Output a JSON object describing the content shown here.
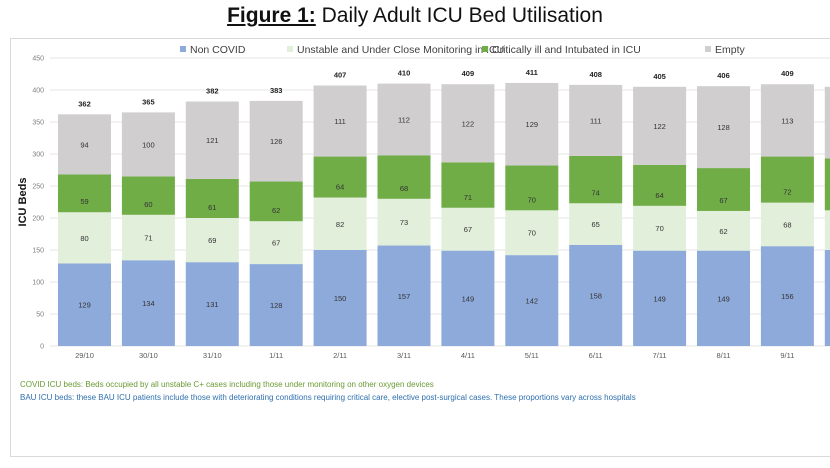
{
  "figure": {
    "title_lead": "Figure 1:",
    "title_rest": " Daily Adult ICU Bed Utilisation"
  },
  "notes": {
    "covid": "COVID ICU beds: Beds occupied by all unstable C+ cases including those under monitoring on other oxygen devices",
    "bau": "BAU ICU beds: these BAU ICU patients include those with deteriorating conditions requiring critical care, elective post-surgical cases. These proportions vary across hospitals"
  },
  "chart_data": {
    "type": "bar",
    "stacked": true,
    "title": "Daily Adult ICU Bed Utilisation",
    "xlabel": "",
    "ylabel": "ICU Beds",
    "ylim": [
      0,
      450
    ],
    "yticks": [
      0,
      50,
      100,
      150,
      200,
      250,
      300,
      350,
      400,
      450
    ],
    "grid": true,
    "legend_position": "top",
    "categories": [
      "29/10",
      "30/10",
      "31/10",
      "1/11",
      "2/11",
      "3/11",
      "4/11",
      "5/11",
      "6/11",
      "7/11",
      "8/11",
      "9/11",
      ""
    ],
    "series": [
      {
        "name": "Non COVID",
        "color": "#8eaadb",
        "values": [
          129,
          134,
          131,
          128,
          150,
          157,
          149,
          142,
          158,
          149,
          149,
          156,
          150
        ]
      },
      {
        "name": "Unstable and Under Close Monitoring in ICU",
        "color": "#e2efda",
        "values": [
          80,
          71,
          69,
          67,
          82,
          73,
          67,
          70,
          65,
          70,
          62,
          68,
          62
        ]
      },
      {
        "name": "Critically ill and Intubated in ICU",
        "color": "#70ad47",
        "values": [
          59,
          60,
          61,
          62,
          64,
          68,
          71,
          70,
          74,
          64,
          67,
          72,
          81
        ]
      },
      {
        "name": "Empty",
        "color": "#d0cece",
        "values": [
          94,
          100,
          121,
          126,
          111,
          112,
          122,
          129,
          111,
          122,
          128,
          113,
          112
        ]
      }
    ],
    "totals": [
      362,
      365,
      382,
      383,
      407,
      410,
      409,
      411,
      408,
      405,
      406,
      409,
      null
    ],
    "last_bar_truncated": true
  }
}
